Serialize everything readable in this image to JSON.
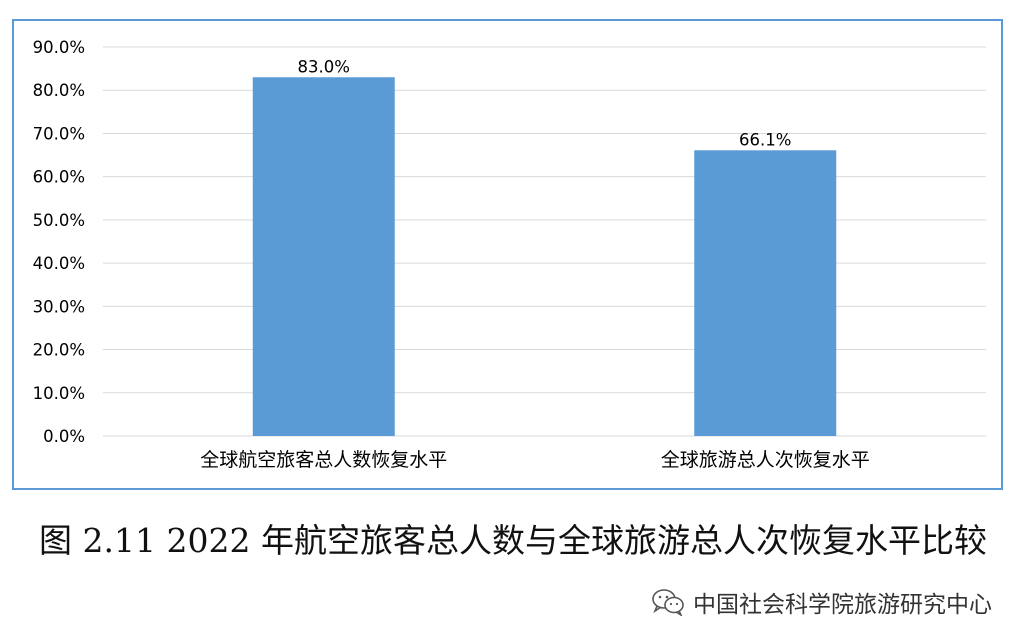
{
  "chart_data": {
    "type": "bar",
    "categories": [
      "全球航空旅客总人数恢复水平",
      "全球旅游总人次恢复水平"
    ],
    "values": [
      83.0,
      66.1
    ],
    "data_labels": [
      "83.0%",
      "66.1%"
    ],
    "ylim": [
      0,
      90
    ],
    "yticks": [
      "0.0%",
      "10.0%",
      "20.0%",
      "30.0%",
      "40.0%",
      "50.0%",
      "60.0%",
      "70.0%",
      "80.0%",
      "90.0%"
    ],
    "grid": true,
    "bar_color": "#5b9bd5",
    "frame_color": "#5b9bd5"
  },
  "caption": "图 2.11 2022 年航空旅客总人数与全球旅游总人次恢复水平比较",
  "watermark": {
    "text": "中国社会科学院旅游研究中心",
    "icon": "wechat-icon"
  }
}
